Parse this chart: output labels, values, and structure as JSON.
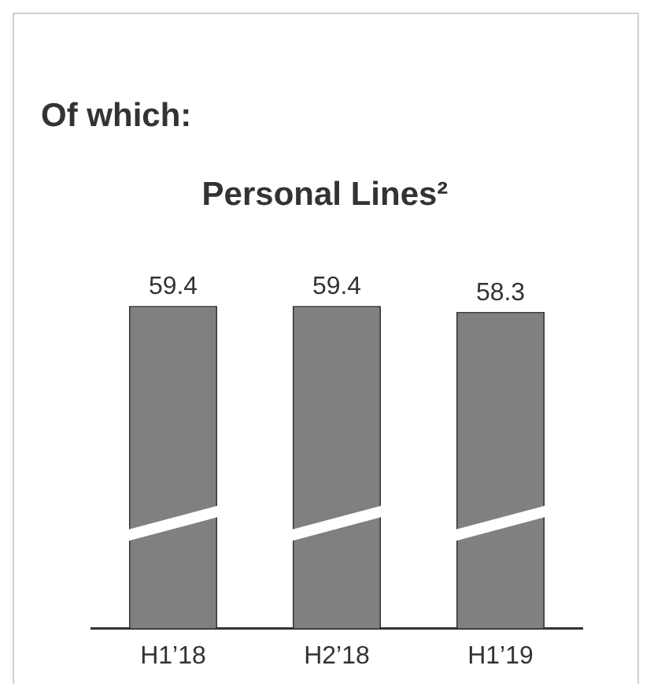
{
  "chart_data": {
    "type": "bar",
    "title": "Of which:",
    "subtitle": "Personal Lines²",
    "categories": [
      "H1’18",
      "H2’18",
      "H1’19"
    ],
    "values": [
      59.4,
      59.4,
      58.3
    ],
    "color": "#808080",
    "tick_labels": "x",
    "data_labels": true,
    "grid": false,
    "legend": false
  }
}
